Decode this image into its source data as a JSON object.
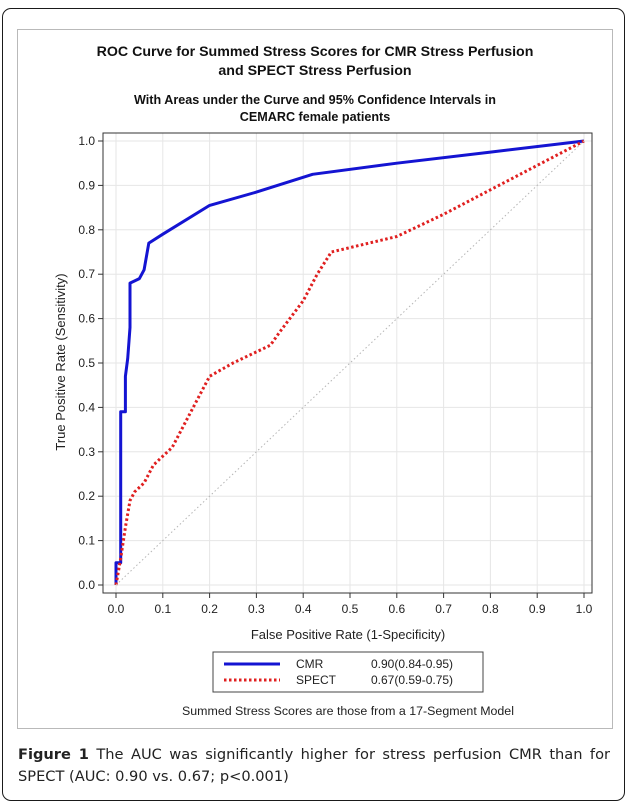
{
  "chart_data": {
    "type": "line",
    "title": "ROC Curve for Summed Stress Scores for CMR Stress Perfusion",
    "title_line2": "and SPECT Stress Perfusion",
    "subtitle": "With Areas under the Curve and 95% Confidence Intervals in",
    "subtitle_line2": "CEMARC female patients",
    "xlabel": "False Positive Rate (1-Specificity)",
    "ylabel": "True Positive Rate (Sensitivity)",
    "xlim": [
      0,
      1
    ],
    "ylim": [
      0,
      1
    ],
    "ticks": [
      "0.0",
      "0.1",
      "0.2",
      "0.3",
      "0.4",
      "0.5",
      "0.6",
      "0.7",
      "0.8",
      "0.9",
      "1.0"
    ],
    "grid": true,
    "legend_position": "bottom",
    "footnote": "Summed Stress Scores are those from a 17-Segment Model",
    "series": [
      {
        "name": "CMR",
        "auc_label": "0.90(0.84-0.95)",
        "color": "#1414d2",
        "style": "solid",
        "x": [
          0.0,
          0.0,
          0.01,
          0.01,
          0.02,
          0.02,
          0.025,
          0.03,
          0.03,
          0.05,
          0.06,
          0.07,
          0.1,
          0.2,
          0.3,
          0.42,
          0.6,
          0.8,
          1.0
        ],
        "y": [
          0.0,
          0.05,
          0.05,
          0.39,
          0.39,
          0.47,
          0.51,
          0.58,
          0.68,
          0.69,
          0.71,
          0.77,
          0.79,
          0.855,
          0.885,
          0.925,
          0.95,
          0.975,
          1.0
        ]
      },
      {
        "name": "SPECT",
        "auc_label": "0.67(0.59-0.75)",
        "color": "#e02020",
        "style": "dotted",
        "x": [
          0.0,
          0.01,
          0.02,
          0.03,
          0.04,
          0.06,
          0.08,
          0.1,
          0.12,
          0.15,
          0.18,
          0.2,
          0.25,
          0.3,
          0.33,
          0.35,
          0.4,
          0.43,
          0.46,
          0.5,
          0.6,
          0.7,
          0.8,
          0.9,
          1.0
        ],
        "y": [
          0.0,
          0.06,
          0.13,
          0.19,
          0.21,
          0.23,
          0.27,
          0.29,
          0.31,
          0.37,
          0.43,
          0.47,
          0.5,
          0.525,
          0.54,
          0.57,
          0.64,
          0.7,
          0.75,
          0.76,
          0.785,
          0.835,
          0.89,
          0.945,
          1.0
        ]
      },
      {
        "role": "reference",
        "color": "#b5b5b5",
        "style": "dotted",
        "x": [
          0,
          1
        ],
        "y": [
          0,
          1
        ]
      }
    ]
  },
  "caption": {
    "label": "Figure 1",
    "text": " The AUC was significantly higher for stress perfusion CMR than for SPECT (AUC: 0.90 vs. 0.67; p<0.001)"
  }
}
